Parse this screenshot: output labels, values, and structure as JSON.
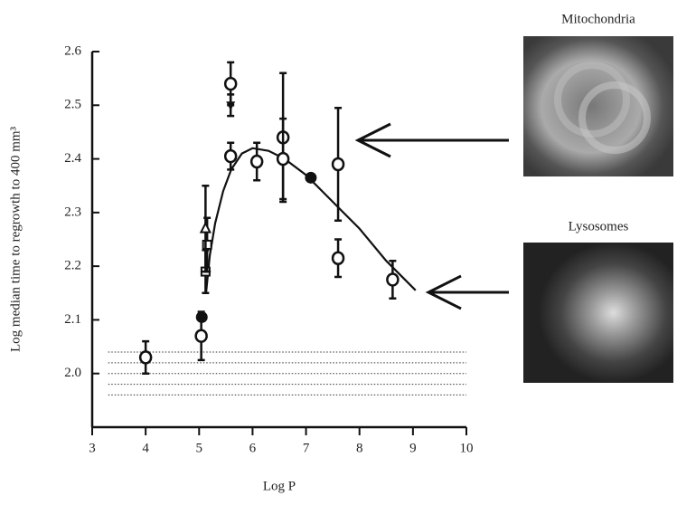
{
  "chart_data": {
    "type": "scatter",
    "x_label": "Log P",
    "y_label": "Log median time to regrowth to 400 mm³",
    "xlim": [
      3,
      10
    ],
    "xticks": [
      3,
      4,
      5,
      6,
      7,
      8,
      9,
      10
    ],
    "ylim": [
      1.9,
      2.6
    ],
    "yticks": [
      2.0,
      2.1,
      2.2,
      2.3,
      2.4,
      2.5,
      2.6
    ],
    "color": "#111111",
    "points": {
      "x": [
        4.0,
        5.04,
        5.05,
        5.12,
        5.15,
        5.12,
        5.59,
        5.59,
        5.59,
        6.08,
        6.57,
        6.57,
        7.09,
        7.6,
        7.6,
        8.62
      ],
      "y": [
        2.03,
        2.07,
        2.105,
        2.19,
        2.24,
        2.27,
        2.54,
        2.5,
        2.405,
        2.395,
        2.44,
        2.4,
        2.365,
        2.39,
        2.215,
        2.175
      ],
      "error": [
        0.03,
        0.045,
        0.0,
        0.04,
        0.05,
        0.08,
        0.04,
        0.02,
        0.025,
        0.035,
        0.12,
        0.075,
        0.0,
        0.105,
        0.035,
        0.035
      ],
      "marker": [
        "open-circle",
        "open-circle",
        "filled-circle",
        "open-square",
        "open-square",
        "open-triangle",
        "open-circle",
        "filled-inverted-triangle",
        "open-circle",
        "open-circle",
        "open-circle",
        "open-circle",
        "filled-circle",
        "open-circle",
        "open-circle",
        "open-circle"
      ]
    },
    "fit": {
      "x": [
        5.13,
        5.2,
        5.3,
        5.45,
        5.6,
        5.8,
        6.0,
        6.3,
        6.6,
        7.0,
        7.5,
        8.0,
        8.5,
        9.05
      ],
      "y": [
        2.15,
        2.22,
        2.28,
        2.34,
        2.38,
        2.41,
        2.42,
        2.415,
        2.4,
        2.37,
        2.32,
        2.27,
        2.21,
        2.155
      ]
    },
    "reference_lines": [
      2.04,
      2.02,
      2.0,
      1.98,
      1.96
    ],
    "images": [
      {
        "caption": "Mitochondria"
      },
      {
        "caption": "Lysosomes"
      }
    ]
  }
}
